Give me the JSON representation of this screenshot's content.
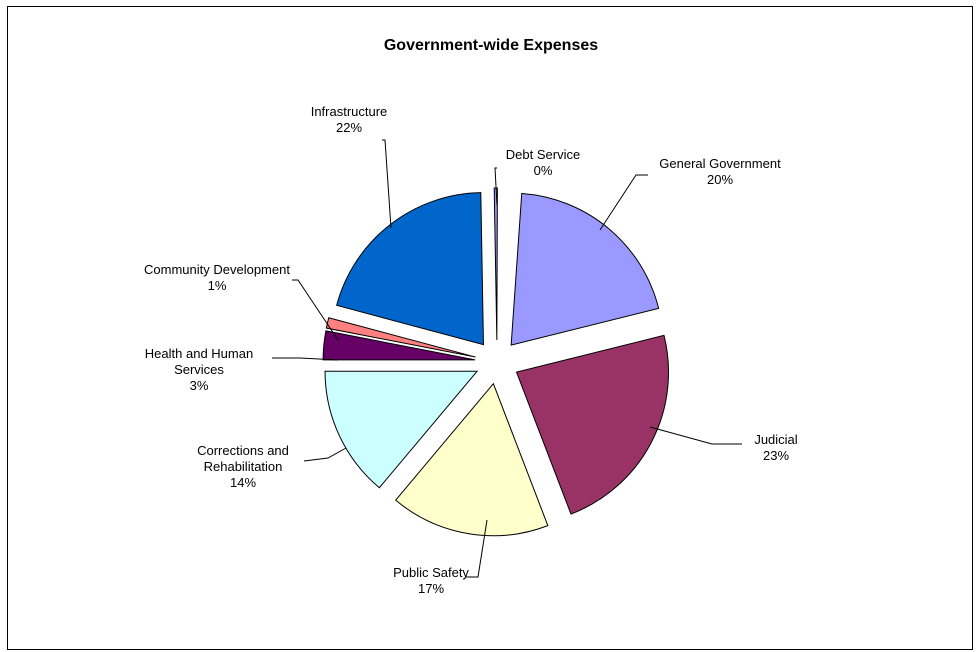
{
  "chart_data": {
    "type": "pie",
    "title": "Government-wide Expenses",
    "exploded": true,
    "slices": [
      {
        "label": "General Government",
        "value": 20,
        "pct_label": "20%",
        "color": "#9999FF"
      },
      {
        "label": "Judicial",
        "value": 23,
        "pct_label": "23%",
        "color": "#993366"
      },
      {
        "label": "Public Safety",
        "value": 17,
        "pct_label": "17%",
        "color": "#FFFFCC"
      },
      {
        "label": "Corrections and Rehabilitation",
        "value": 14,
        "pct_label": "14%",
        "color": "#CCFFFF"
      },
      {
        "label": "Health and Human Services",
        "value": 3,
        "pct_label": "3%",
        "color": "#660066"
      },
      {
        "label": "Community Development",
        "value": 1,
        "pct_label": "1%",
        "color": "#FF8080"
      },
      {
        "label": "Infrastructure",
        "value": 22,
        "pct_label": "22%",
        "color": "#0066CC"
      },
      {
        "label": "Debt Service",
        "value": 0,
        "pct_label": "0%",
        "color": "#9999FF"
      }
    ]
  }
}
